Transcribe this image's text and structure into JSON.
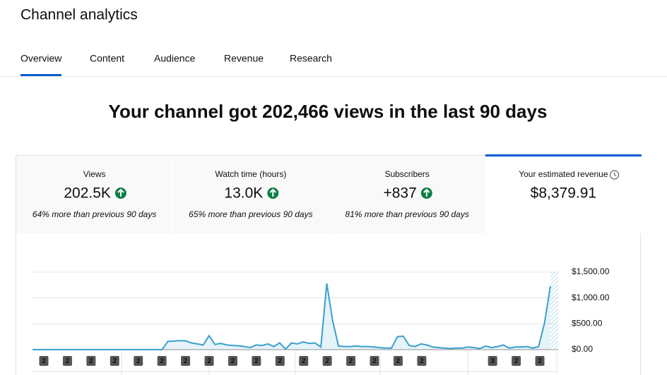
{
  "header": {
    "title": "Channel analytics"
  },
  "tabs": [
    "Overview",
    "Content",
    "Audience",
    "Revenue",
    "Research"
  ],
  "headline": "Your channel got 202,466 views in the last 90 days",
  "metrics": [
    {
      "label": "Views",
      "value": "202.5K",
      "note": "64% more than previous 90 days"
    },
    {
      "label": "Watch time (hours)",
      "value": "13.0K",
      "note": "65% more than previous 90 days"
    },
    {
      "label": "Subscribers",
      "value": "+837",
      "note": "81% more than previous 90 days"
    },
    {
      "label": "Your estimated revenue",
      "value": "$8,379.91"
    }
  ],
  "chart_data": {
    "type": "line",
    "color": "#3aa0cc",
    "values": [
      0,
      0,
      0,
      0,
      0,
      0,
      0,
      0,
      0,
      0,
      0,
      0,
      0,
      0,
      0,
      0,
      0,
      0,
      0,
      0,
      0,
      0,
      0,
      160,
      165,
      175,
      170,
      130,
      110,
      90,
      270,
      100,
      120,
      90,
      80,
      75,
      60,
      40,
      90,
      80,
      110,
      60,
      130,
      10,
      130,
      110,
      150,
      120,
      130,
      50,
      1280,
      560,
      70,
      60,
      60,
      70,
      60,
      60,
      50,
      40,
      30,
      30,
      250,
      260,
      80,
      60,
      110,
      90,
      50,
      40,
      30,
      20,
      30,
      30,
      50,
      40,
      20,
      70,
      40,
      60,
      90,
      30,
      50,
      50,
      60,
      30,
      60,
      520,
      1230
    ],
    "ylim": [
      0,
      1500
    ],
    "yticks": [
      {
        "value": 0,
        "label": "$0.00"
      },
      {
        "value": 500,
        "label": "$500.00"
      },
      {
        "value": 1000,
        "label": "$1,000.00"
      },
      {
        "value": 1500,
        "label": "$1,500.00"
      }
    ],
    "grid": true,
    "annotations": [
      "2",
      "2",
      "2",
      "2",
      "2",
      "2",
      "2",
      "2",
      "2",
      "2",
      "2",
      "2",
      "2",
      "2",
      "2",
      "2",
      "2",
      null,
      null,
      "3",
      "2",
      "2"
    ]
  }
}
